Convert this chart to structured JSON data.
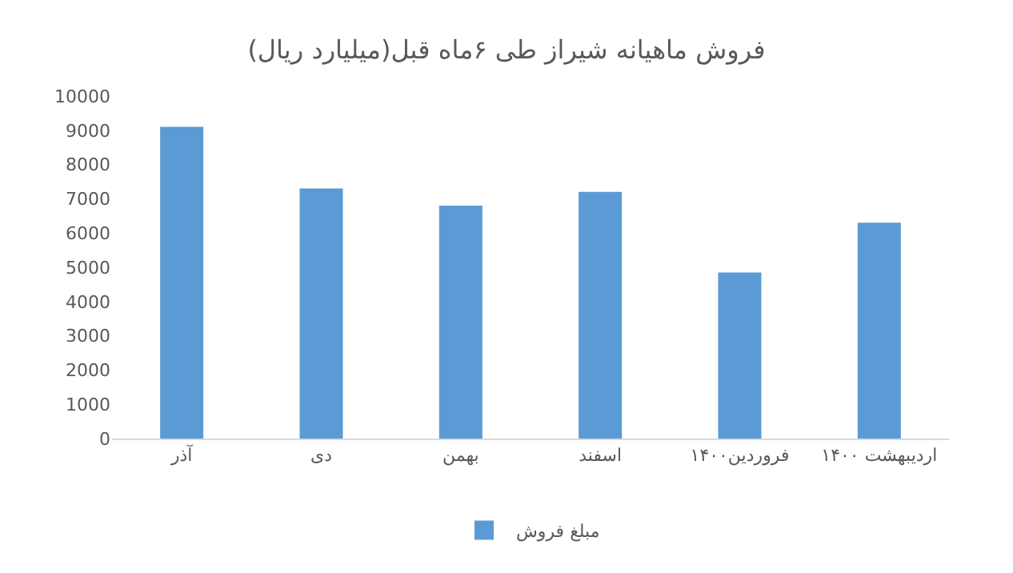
{
  "chart_data": {
    "type": "bar",
    "title": "فروش ماهیانه شیراز طی ۶ماه قبل(میلیارد ریال)",
    "categories": [
      "آذر",
      "دی",
      "بهمن",
      "اسفند",
      "فروردین۱۴۰۰",
      "اردیبهشت ۱۴۰۰"
    ],
    "series": [
      {
        "name": "مبلغ فروش",
        "color": "#5b9bd5",
        "values": [
          9100,
          7300,
          6800,
          7200,
          4850,
          6300
        ]
      }
    ],
    "ylim": [
      0,
      10000
    ],
    "yticks": [
      0,
      1000,
      2000,
      3000,
      4000,
      5000,
      6000,
      7000,
      8000,
      9000,
      10000
    ],
    "grid": false,
    "legend": "bottom"
  }
}
